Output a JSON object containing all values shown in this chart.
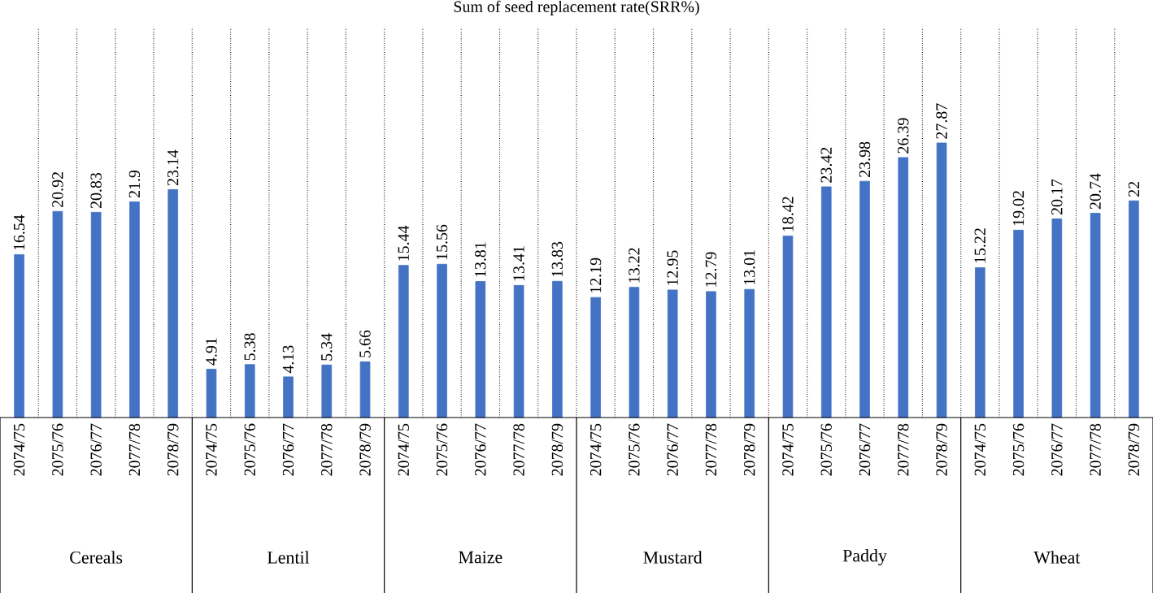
{
  "chart_data": {
    "type": "bar",
    "title": "Sum of seed replacement rate(SRR%)",
    "categories": [
      "2074/75",
      "2075/76",
      "2076/77",
      "2077/78",
      "2078/79",
      "2074/75",
      "2075/76",
      "2076/77",
      "2077/78",
      "2078/79",
      "2074/75",
      "2075/76",
      "2076/77",
      "2077/78",
      "2078/79",
      "2074/75",
      "2075/76",
      "2076/77",
      "2077/78",
      "2078/79",
      "2074/75",
      "2075/76",
      "2076/77",
      "2077/78",
      "2078/79",
      "2074/75",
      "2075/76",
      "2076/77",
      "2077/78",
      "2078/79"
    ],
    "values": [
      16.54,
      20.92,
      20.83,
      21.9,
      23.14,
      4.91,
      5.38,
      4.13,
      5.34,
      5.66,
      15.44,
      15.56,
      13.81,
      13.41,
      13.83,
      12.19,
      13.22,
      12.95,
      12.79,
      13.01,
      18.42,
      23.42,
      23.98,
      26.39,
      27.87,
      15.22,
      19.02,
      20.17,
      20.74,
      22
    ],
    "color": "#4472c4",
    "data_labels": true,
    "grid": "x",
    "annotations": [
      "Cereals",
      "Lentil",
      "Maize",
      "Mustard",
      "Paddy",
      "Wheat"
    ]
  }
}
